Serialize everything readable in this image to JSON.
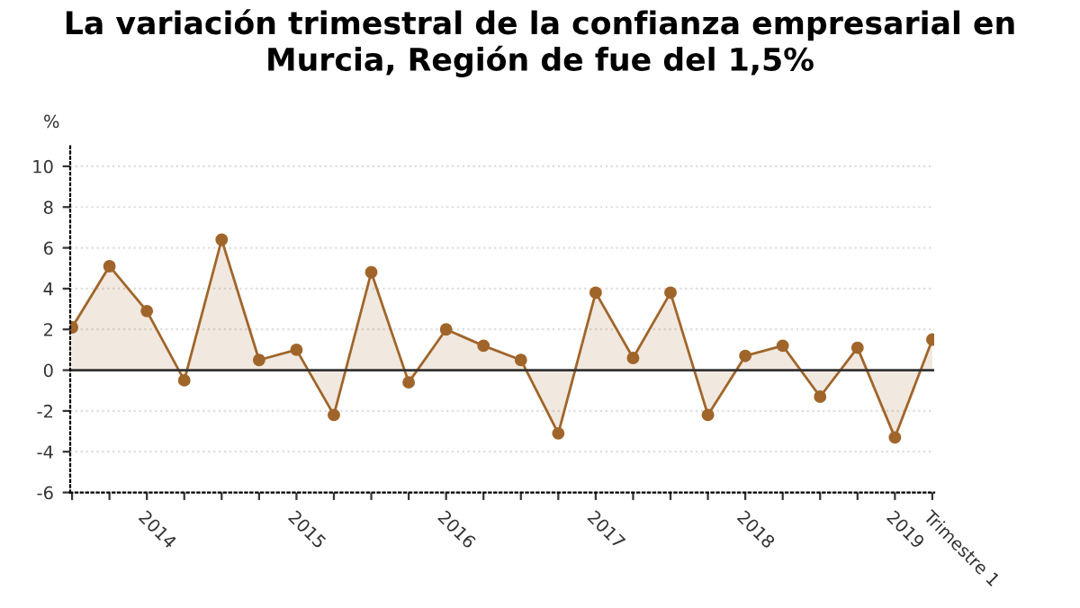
{
  "chart_data": {
    "type": "area",
    "title": "La variación trimestral de la confianza empresarial en Murcia, Región de fue del 1,5%",
    "ylabel": "%",
    "categories": [
      null,
      null,
      "2014",
      null,
      null,
      null,
      "2015",
      null,
      null,
      null,
      "2016",
      null,
      null,
      null,
      "2017",
      null,
      null,
      null,
      "2018",
      null,
      null,
      null,
      "2019",
      "Trimestre 1"
    ],
    "series": [
      {
        "color": "#a0652a",
        "values": [
          2.1,
          5.1,
          2.9,
          -0.5,
          6.4,
          0.5,
          1.0,
          -2.2,
          4.8,
          -0.6,
          2.0,
          1.2,
          0.5,
          -3.1,
          3.8,
          0.6,
          3.8,
          -2.2,
          0.7,
          1.2,
          -1.3,
          1.1,
          -3.3,
          1.5
        ]
      }
    ],
    "ylim": [
      -6,
      11
    ],
    "yticks": [
      -6,
      -4,
      -2,
      0,
      2,
      4,
      6,
      8,
      10
    ],
    "grid": "y",
    "marker": "circle",
    "line_style": "solid",
    "ref_lines": [
      {
        "axis": "y",
        "value": 0,
        "color": "#333333"
      }
    ]
  }
}
